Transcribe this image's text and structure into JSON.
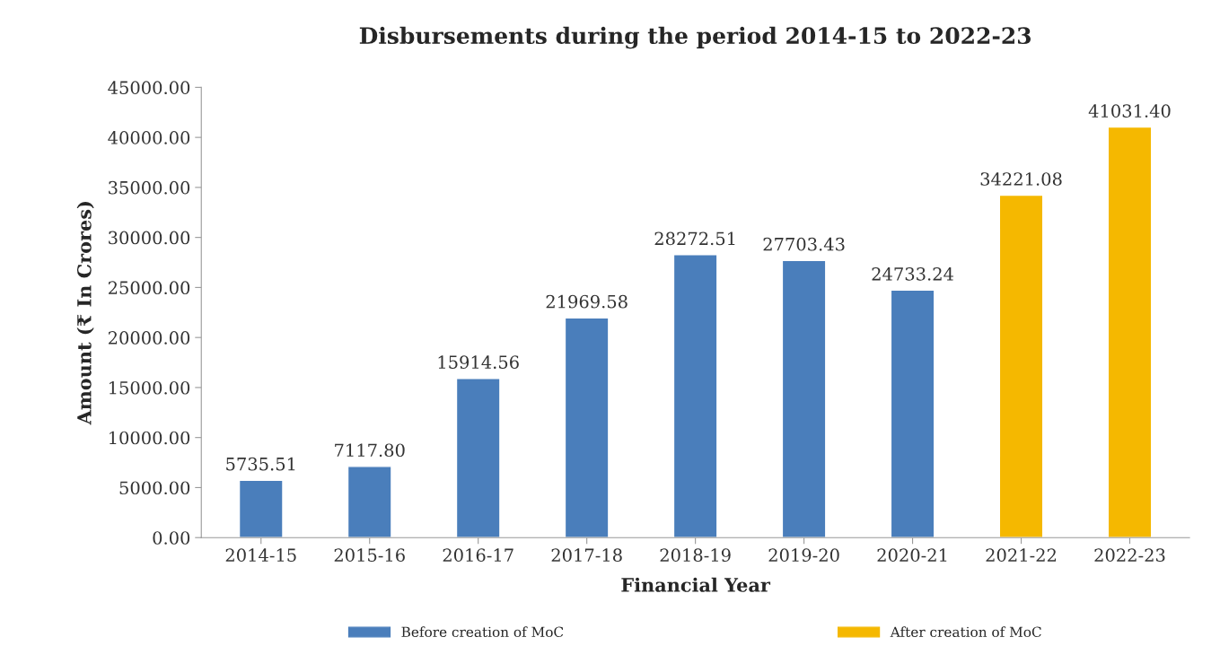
{
  "chart_data": {
    "type": "bar",
    "title": "Disbursements during the period 2014-15 to 2022-23",
    "xlabel": "Financial Year",
    "ylabel": "Amount (₹ In Crores)",
    "categories": [
      "2014-15",
      "2015-16",
      "2016-17",
      "2017-18",
      "2018-19",
      "2019-20",
      "2020-21",
      "2021-22",
      "2022-23"
    ],
    "series": [
      {
        "name": "Before creation of MoC",
        "color": "#4a7ebb",
        "values": [
          5735.51,
          7117.8,
          15914.56,
          21969.58,
          28272.51,
          27703.43,
          24733.24,
          null,
          null
        ]
      },
      {
        "name": "After creation of MoC",
        "color": "#f5b800",
        "values": [
          null,
          null,
          null,
          null,
          null,
          null,
          null,
          34221.08,
          41031.4
        ]
      }
    ],
    "value_labels": [
      "5735.51",
      "7117.80",
      "15914.56",
      "21969.58",
      "28272.51",
      "27703.43",
      "24733.24",
      "34221.08",
      "41031.40"
    ],
    "ylim": [
      0,
      45000
    ],
    "yticks": [
      {
        "value": 0,
        "label": "0.00"
      },
      {
        "value": 5000,
        "label": "5000.00"
      },
      {
        "value": 10000,
        "label": "10000.00"
      },
      {
        "value": 15000,
        "label": "15000.00"
      },
      {
        "value": 20000,
        "label": "20000.00"
      },
      {
        "value": 25000,
        "label": "25000.00"
      },
      {
        "value": 30000,
        "label": "30000.00"
      },
      {
        "value": 35000,
        "label": "35000.00"
      },
      {
        "value": 40000,
        "label": "40000.00"
      },
      {
        "value": 45000,
        "label": "45000.00"
      }
    ],
    "grid": false,
    "legend": "bottom"
  }
}
